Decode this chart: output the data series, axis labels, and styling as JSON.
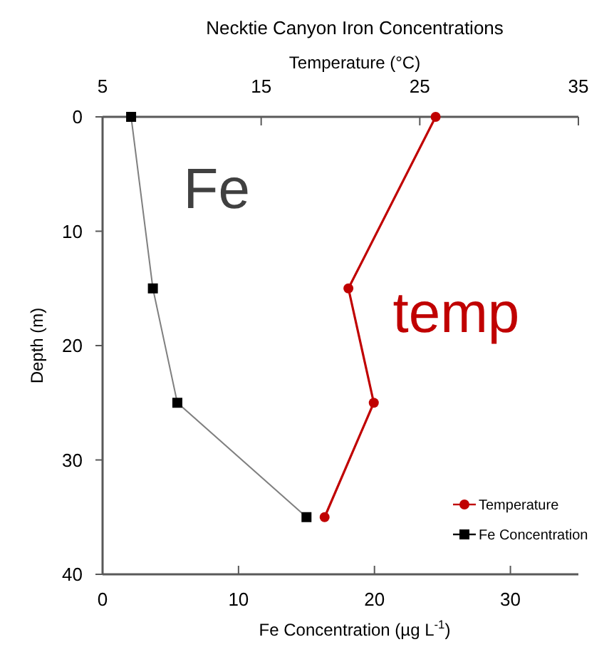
{
  "chart_data": {
    "type": "line",
    "title": "Necktie Canyon Iron Concentrations",
    "xlabel": "Fe Concentration (µg L$^{-1}$)",
    "x2label": "Temperature (°C)",
    "ylabel": "Depth (m)",
    "xlim": [
      0,
      35
    ],
    "xticks": [
      0,
      10,
      20,
      30
    ],
    "x2lim": [
      5,
      35
    ],
    "x2ticks": [
      5,
      15,
      25,
      35
    ],
    "ylim": [
      40,
      0
    ],
    "yticks": [
      0,
      10,
      20,
      30,
      40
    ],
    "series": [
      {
        "name": "Temperature",
        "color": "#c00000",
        "axis": "x2",
        "marker": "circle",
        "x": [
          26.0,
          20.5,
          22.1,
          19.0
        ],
        "values": [
          0,
          15,
          25,
          35
        ]
      },
      {
        "name": "Fe Concentration",
        "color": "#000000",
        "marker": "square",
        "x": [
          2.1,
          3.7,
          5.5,
          15.0
        ],
        "values": [
          0,
          15,
          25,
          35
        ]
      }
    ],
    "annotations": [
      "temp",
      "Fe"
    ],
    "legend": "bottom right",
    "grid": false
  }
}
